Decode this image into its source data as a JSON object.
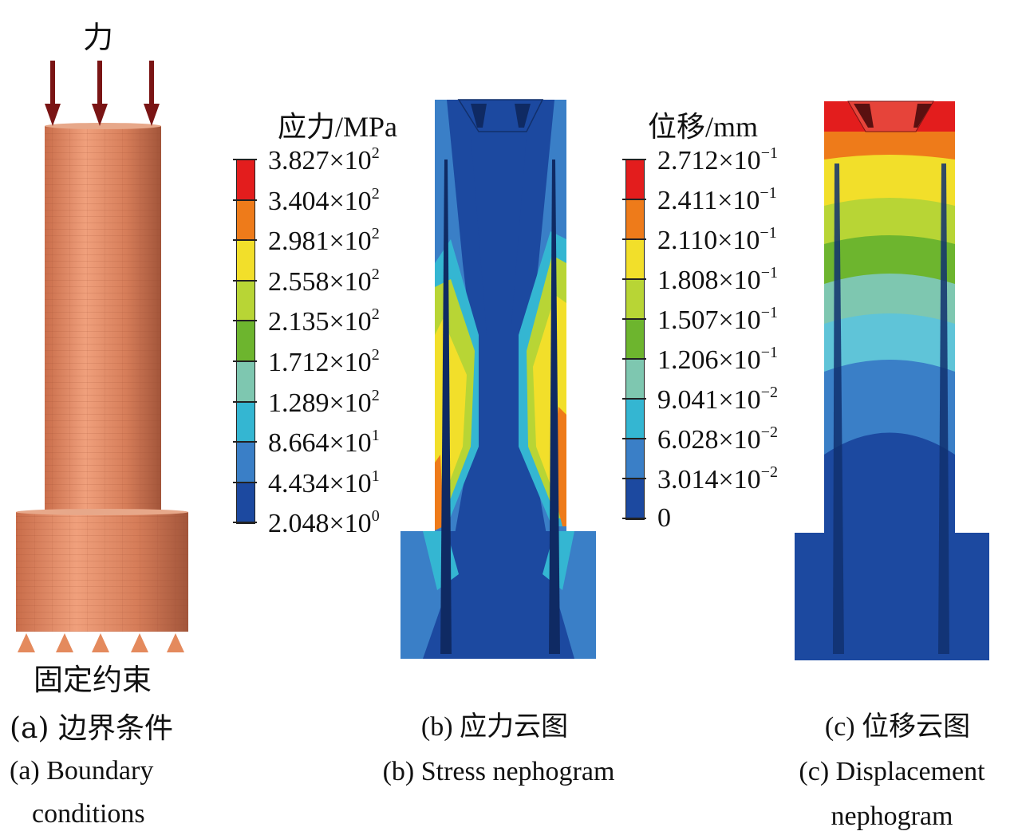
{
  "panel_a": {
    "force_label": "力",
    "constraint_label": "固定约束",
    "caption_cn": "(a) 边界条件",
    "caption_en_line1": "(a) Boundary",
    "caption_en_line2": "conditions"
  },
  "panel_b": {
    "legend_title": "应力/MPa",
    "legend_values": [
      {
        "mantissa": "3.827×10",
        "exp": "2"
      },
      {
        "mantissa": "3.404×10",
        "exp": "2"
      },
      {
        "mantissa": "2.981×10",
        "exp": "2"
      },
      {
        "mantissa": "2.558×10",
        "exp": "2"
      },
      {
        "mantissa": "2.135×10",
        "exp": "2"
      },
      {
        "mantissa": "1.712×10",
        "exp": "2"
      },
      {
        "mantissa": "1.289×10",
        "exp": "2"
      },
      {
        "mantissa": "8.664×10",
        "exp": "1"
      },
      {
        "mantissa": "4.434×10",
        "exp": "1"
      },
      {
        "mantissa": "2.048×10",
        "exp": "0"
      }
    ],
    "caption_cn": "(b) 应力云图",
    "caption_en": "(b) Stress nephogram"
  },
  "panel_c": {
    "legend_title": "位移/mm",
    "legend_values": [
      {
        "mantissa": "2.712×10",
        "exp": "−1"
      },
      {
        "mantissa": "2.411×10",
        "exp": "−1"
      },
      {
        "mantissa": "2.110×10",
        "exp": "−1"
      },
      {
        "mantissa": "1.808×10",
        "exp": "−1"
      },
      {
        "mantissa": "1.507×10",
        "exp": "−1"
      },
      {
        "mantissa": "1.206×10",
        "exp": "−1"
      },
      {
        "mantissa": "9.041×10",
        "exp": "−2"
      },
      {
        "mantissa": "6.028×10",
        "exp": "−2"
      },
      {
        "mantissa": "3.014×10",
        "exp": "−2"
      },
      {
        "mantissa": "0",
        "exp": ""
      }
    ],
    "caption_cn": "(c) 位移云图",
    "caption_en_line1": "(c) Displacement",
    "caption_en_line2": "nephogram"
  },
  "colors": {
    "contour_scale": [
      "#e31d1d",
      "#ee7b1a",
      "#f2df2a",
      "#b8d535",
      "#6db52e",
      "#7ec7b0",
      "#34b6d2",
      "#3a7fc7",
      "#1c49a0"
    ],
    "arrow": "#7a1414",
    "copper": "#e08860"
  }
}
